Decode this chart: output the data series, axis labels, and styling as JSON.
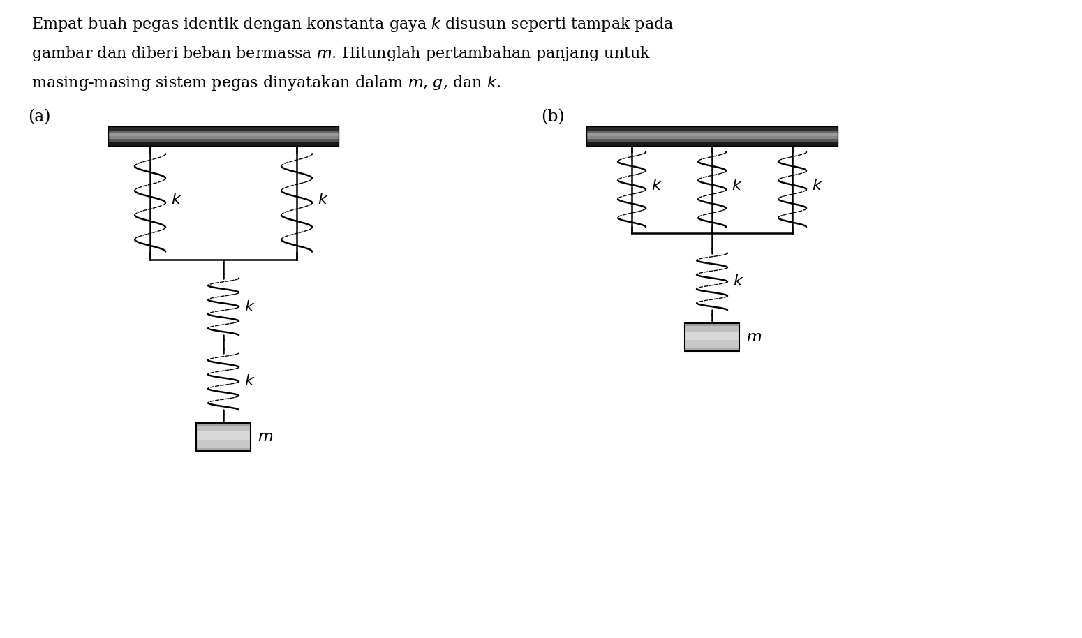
{
  "background_color": "#ffffff",
  "text_lines": [
    "Empat buah pegas identik dengan konstanta gaya $k$ disusun seperti tampak pada",
    "gambar dan diberi beban bermassa $m$. Hitunglah pertambahan panjang untuk",
    "masing-masing sistem pegas dinyatakan dalam $m$, $g$, dan $k$."
  ],
  "label_fontsize": 16,
  "text_fontsize": 16,
  "fig_width": 15.5,
  "fig_height": 9.14,
  "lw": 1.8
}
